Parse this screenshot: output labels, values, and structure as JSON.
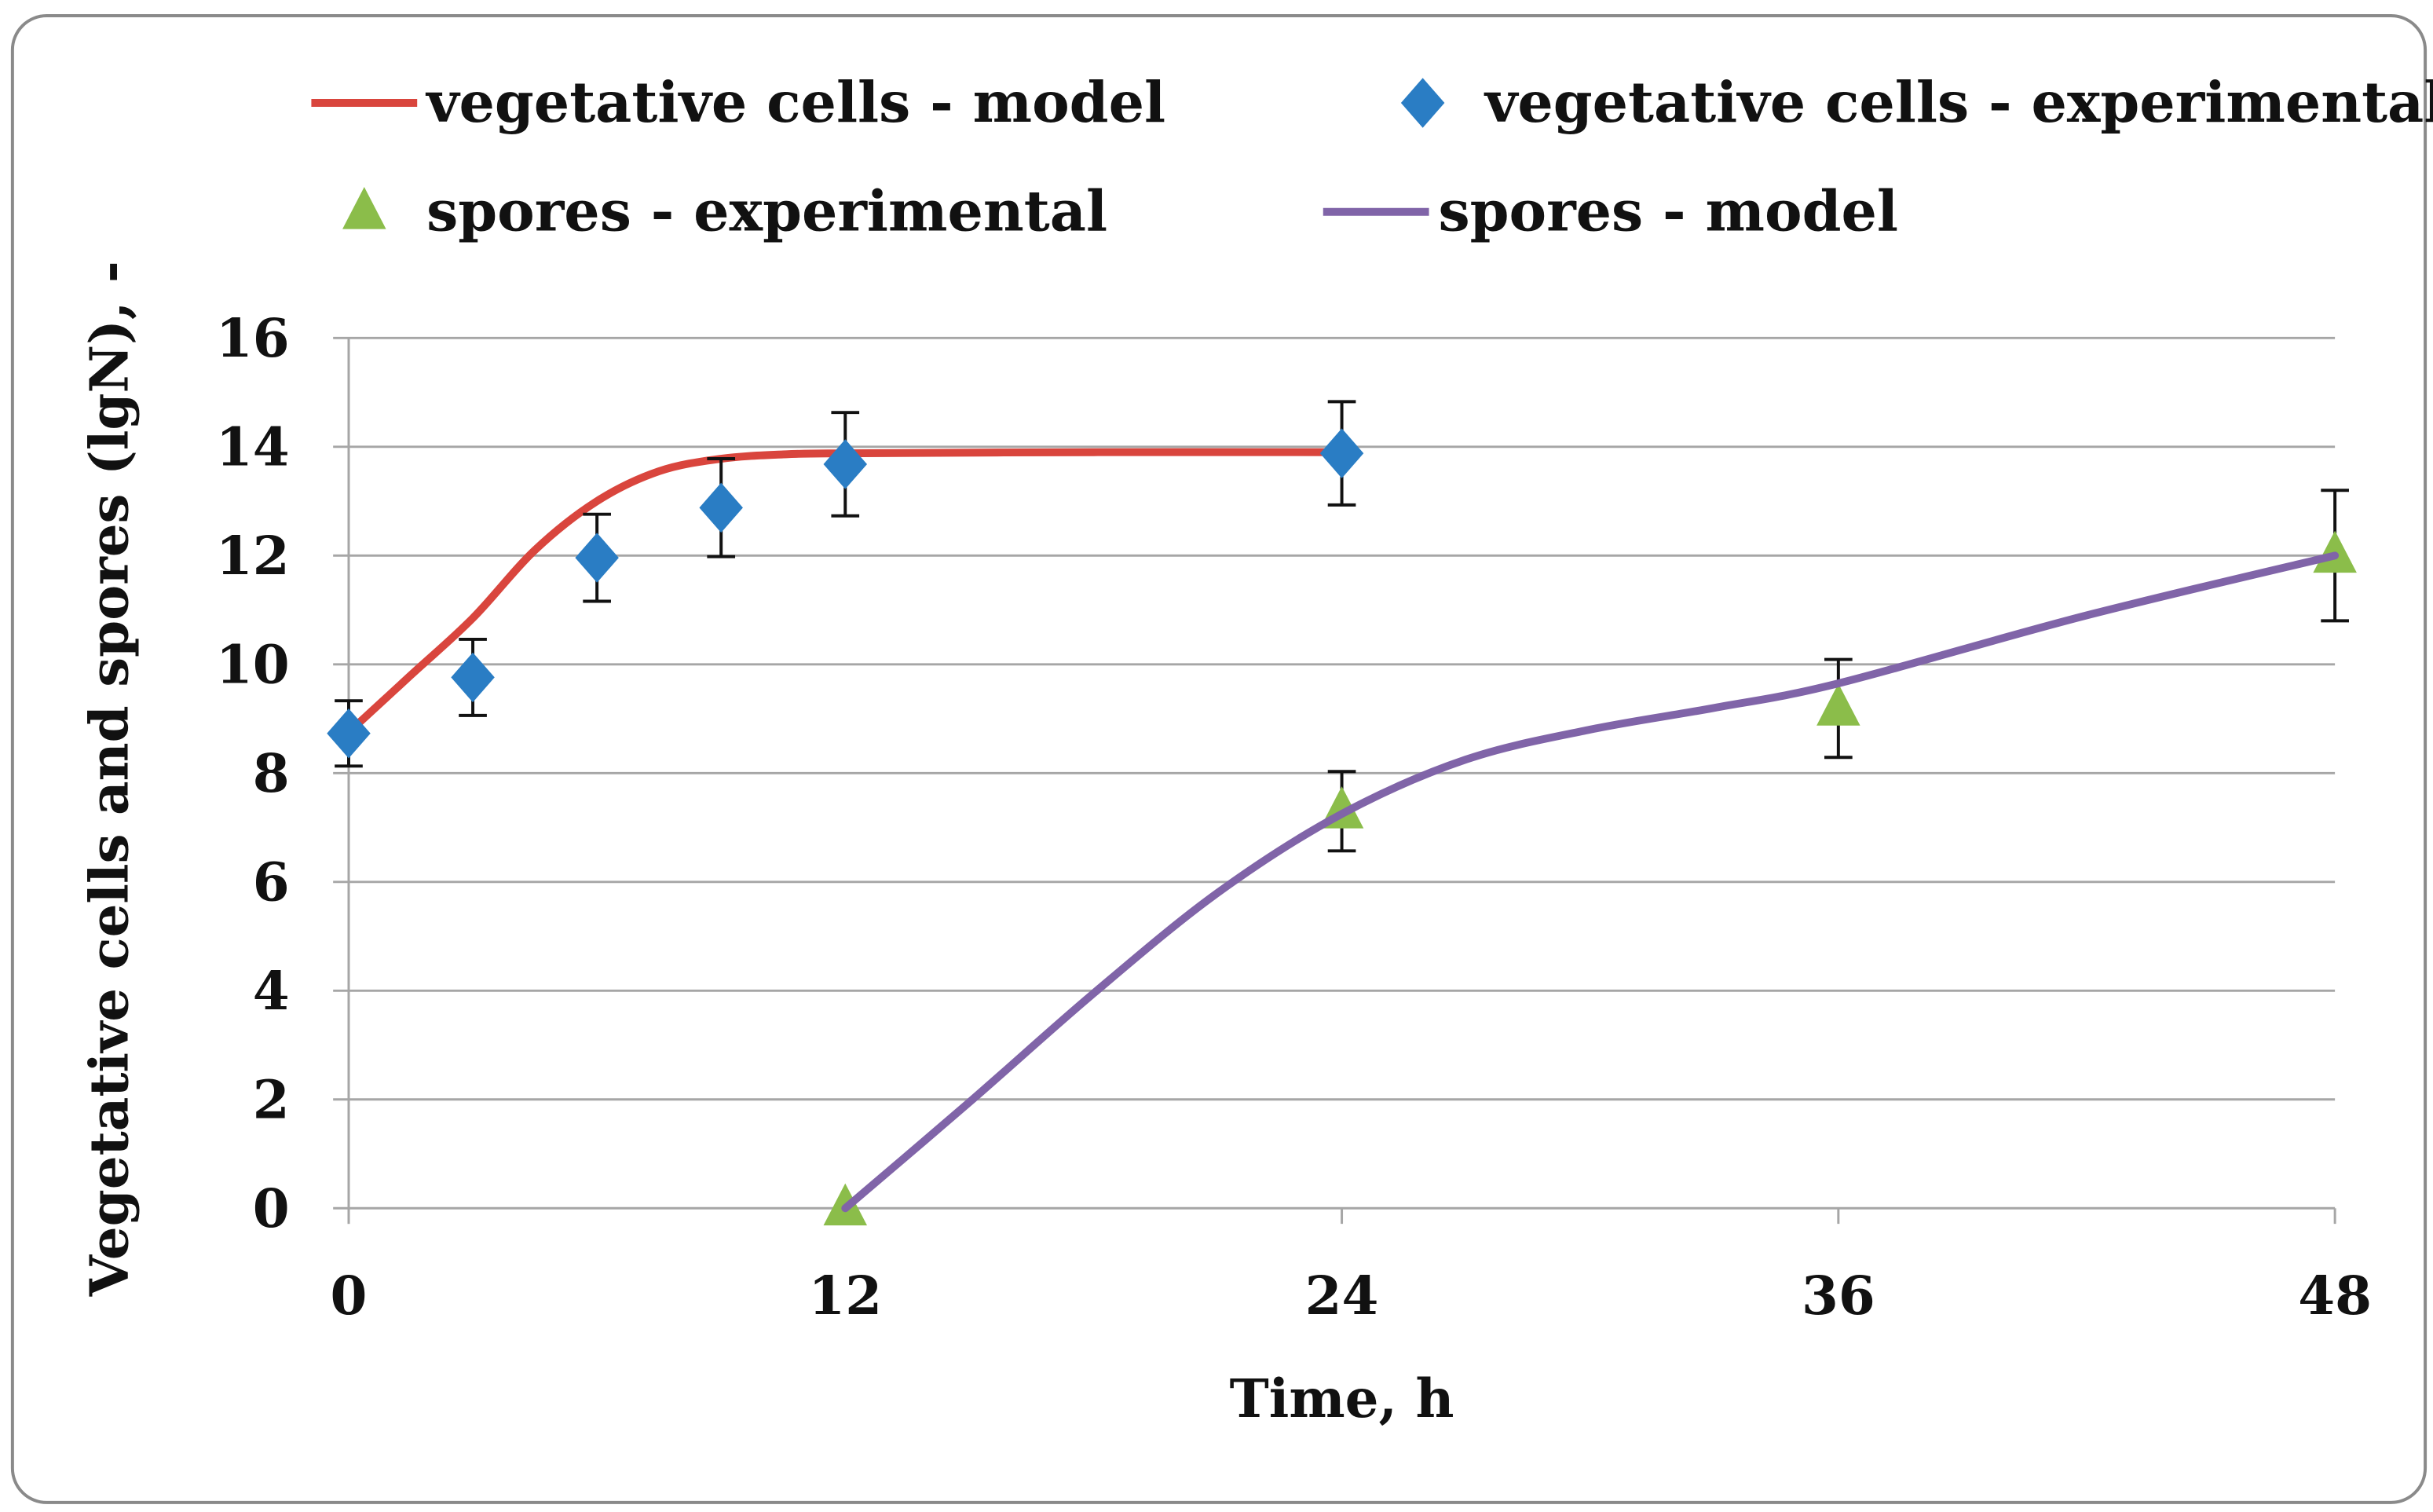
{
  "chart_data": {
    "type": "line",
    "title": "",
    "xlabel": "Time, h",
    "ylabel": "Vegetative cells and spores (lgN), -",
    "xlim": [
      0,
      48
    ],
    "ylim": [
      0,
      16
    ],
    "xticks": [
      0,
      12,
      24,
      36,
      48
    ],
    "yticks": [
      0,
      2,
      4,
      6,
      8,
      10,
      12,
      14,
      16
    ],
    "grid": "horizontal",
    "legend_position": "top",
    "series": [
      {
        "name": "vegetative cells - model",
        "kind": "line",
        "color": "#d9453d",
        "x": [
          0,
          1.5,
          3,
          4.5,
          6,
          7.5,
          9,
          10.5,
          12,
          18,
          24
        ],
        "y": [
          8.75,
          9.8,
          10.85,
          12.1,
          13.0,
          13.55,
          13.78,
          13.86,
          13.88,
          13.9,
          13.9
        ]
      },
      {
        "name": "vegetative cells - experimental",
        "kind": "diamond",
        "color": "#2a7dc4",
        "x": [
          0,
          3,
          6,
          9,
          12,
          24
        ],
        "y": [
          8.73,
          9.76,
          11.96,
          12.88,
          13.68,
          13.88
        ],
        "err": [
          0.6,
          0.7,
          0.8,
          0.9,
          0.95,
          0.95
        ]
      },
      {
        "name": "spores - experimental",
        "kind": "triangle",
        "color": "#8bbd4a",
        "x": [
          12,
          24,
          36,
          48
        ],
        "y": [
          0,
          7.3,
          9.19,
          12.0
        ],
        "err": [
          0,
          0.73,
          0.9,
          1.2
        ]
      },
      {
        "name": "spores - model",
        "kind": "line",
        "color": "#8064a8",
        "x": [
          12,
          15,
          18,
          21,
          24,
          27,
          30,
          33,
          36,
          42,
          48
        ],
        "y": [
          0,
          1.95,
          3.95,
          5.8,
          7.25,
          8.25,
          8.8,
          9.2,
          9.65,
          10.9,
          12.0
        ]
      }
    ]
  }
}
